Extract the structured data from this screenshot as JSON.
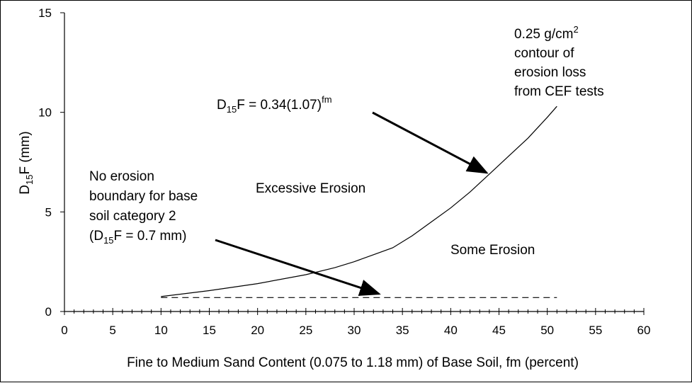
{
  "chart_data": {
    "type": "line",
    "xlabel": "Fine to Medium Sand Content (0.075 to 1.18 mm) of Base Soil, fm (percent)",
    "ylabel": {
      "main": "D",
      "sub": "15",
      "tail": "F (mm)"
    },
    "xlim": [
      0,
      60
    ],
    "ylim": [
      0,
      15
    ],
    "xticks": [
      0,
      5,
      10,
      15,
      20,
      25,
      30,
      35,
      40,
      45,
      50,
      55,
      60
    ],
    "yticks": [
      0,
      5,
      10,
      15
    ],
    "x_minor_step": 1,
    "grid": false,
    "legend": "none",
    "series": [
      {
        "style": "solid",
        "color": "#000000",
        "points": [
          [
            10,
            0.75
          ],
          [
            15,
            1.05
          ],
          [
            20,
            1.4
          ],
          [
            25,
            1.85
          ],
          [
            28,
            2.2
          ],
          [
            30,
            2.5
          ],
          [
            32,
            2.85
          ],
          [
            34,
            3.2
          ],
          [
            36,
            3.8
          ],
          [
            38,
            4.5
          ],
          [
            40,
            5.2
          ],
          [
            42,
            6.0
          ],
          [
            44,
            6.9
          ],
          [
            46,
            7.8
          ],
          [
            48,
            8.7
          ],
          [
            50,
            9.75
          ],
          [
            51,
            10.3
          ]
        ]
      },
      {
        "style": "dashed",
        "color": "#000000",
        "points": [
          [
            10,
            0.7
          ],
          [
            51,
            0.7
          ]
        ]
      }
    ],
    "annotations": {
      "contour": {
        "line1": "0.25 g/cm",
        "sup": "2",
        "line2": "contour of",
        "line3": "erosion loss",
        "line4": "from CEF tests"
      },
      "equation": {
        "a": "D",
        "sub": "15",
        "b": "F = 0.34(1.07)",
        "sup": "fm"
      },
      "excessive": "Excessive Erosion",
      "some": "Some Erosion",
      "no_erosion": {
        "line1": "No erosion",
        "line2": "boundary for base",
        "line3": "soil category 2",
        "line4a": "(D",
        "line4sub": "15",
        "line4b": "F = 0.7 mm)"
      }
    }
  }
}
